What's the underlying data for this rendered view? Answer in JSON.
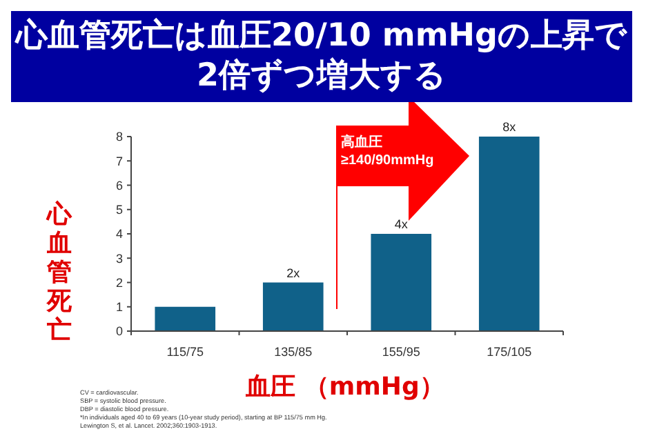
{
  "chart_data": {
    "type": "bar",
    "title": "心血管死亡は血圧20/10 mmHgの上昇で2倍ずつ増大する",
    "xlabel": "血圧 （mmHg）",
    "ylabel": "心血管死亡",
    "categories": [
      "115/75",
      "135/85",
      "155/95",
      "175/105"
    ],
    "values": [
      1,
      2,
      4,
      8
    ],
    "value_labels": [
      null,
      "2x",
      "4x",
      "8x"
    ],
    "color": "#106189",
    "ylim": [
      0,
      8
    ],
    "yticks": [
      0,
      1,
      2,
      3,
      4,
      5,
      6,
      7,
      8
    ],
    "annotations": [
      "高血圧 ≥140/90mmHg",
      "CV = cardiovascular.",
      "SBP = systolic blood pressure.",
      "DBP = diastolic blood pressure.",
      "*In individuals aged 40 to 69 years (10-year study period), starting at BP 115/75 mm Hg.",
      "Lewington S, et al. Lancet. 2002;360:1903-1913."
    ]
  }
}
